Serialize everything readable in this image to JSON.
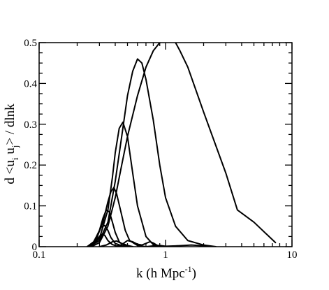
{
  "chart_data": {
    "type": "line",
    "title": "",
    "xlabel": "k (h Mpc",
    "xlabel_sup": "-1",
    "xlabel_close": ")",
    "ylabel": "d <u",
    "ylabel_sub_i": "i",
    "ylabel_mid": " u",
    "ylabel_sub_j": "j",
    "ylabel_end": "> / dlnk",
    "xscale": "log",
    "xlim": [
      0.1,
      10
    ],
    "ylim": [
      0,
      0.5
    ],
    "xticks": [
      {
        "value": 0.1,
        "label": "0.1"
      },
      {
        "value": 1,
        "label": "1"
      },
      {
        "value": 10,
        "label": "10"
      }
    ],
    "yticks": [
      {
        "value": 0,
        "label": "0"
      },
      {
        "value": 0.1,
        "label": "0.1"
      },
      {
        "value": 0.2,
        "label": "0.2"
      },
      {
        "value": 0.3,
        "label": "0.3"
      },
      {
        "value": 0.4,
        "label": "0.4"
      },
      {
        "value": 0.5,
        "label": "0.5"
      }
    ],
    "grid": false,
    "line_color": "#000000",
    "series": [
      {
        "x": [
          0.26,
          0.3,
          0.35,
          0.4,
          0.45,
          0.5,
          0.6,
          0.7,
          0.8,
          0.9,
          1.0,
          1.1,
          1.2,
          1.3,
          1.5,
          2.0,
          3.0,
          3.7,
          5.0,
          7.4
        ],
        "y": [
          0,
          0.01,
          0.05,
          0.12,
          0.2,
          0.27,
          0.37,
          0.44,
          0.48,
          0.5,
          0.505,
          0.505,
          0.5,
          0.48,
          0.44,
          0.33,
          0.18,
          0.09,
          0.06,
          0.01
        ]
      },
      {
        "x": [
          0.25,
          0.3,
          0.35,
          0.4,
          0.45,
          0.5,
          0.55,
          0.6,
          0.65,
          0.7,
          0.8,
          0.9,
          1.0,
          1.2,
          1.5,
          2.0,
          2.5
        ],
        "y": [
          0,
          0.015,
          0.06,
          0.16,
          0.27,
          0.37,
          0.43,
          0.46,
          0.45,
          0.41,
          0.31,
          0.2,
          0.12,
          0.05,
          0.015,
          0.004,
          0
        ]
      },
      {
        "x": [
          0.25,
          0.3,
          0.35,
          0.38,
          0.4,
          0.43,
          0.46,
          0.5,
          0.55,
          0.6,
          0.7,
          0.8,
          0.9
        ],
        "y": [
          0,
          0.02,
          0.09,
          0.17,
          0.23,
          0.29,
          0.305,
          0.27,
          0.18,
          0.1,
          0.025,
          0.005,
          0
        ]
      },
      {
        "x": [
          0.24,
          0.28,
          0.32,
          0.35,
          0.37,
          0.39,
          0.41,
          0.44,
          0.48,
          0.52,
          0.6,
          0.7
        ],
        "y": [
          0,
          0.015,
          0.06,
          0.11,
          0.135,
          0.145,
          0.13,
          0.09,
          0.04,
          0.015,
          0.003,
          0
        ]
      },
      {
        "x": [
          0.24,
          0.27,
          0.3,
          0.32,
          0.34,
          0.36,
          0.38,
          0.4,
          0.43,
          0.47,
          0.55
        ],
        "y": [
          0,
          0.01,
          0.04,
          0.07,
          0.09,
          0.085,
          0.06,
          0.035,
          0.012,
          0.003,
          0
        ]
      },
      {
        "x": [
          0.24,
          0.27,
          0.29,
          0.31,
          0.33,
          0.35,
          0.37,
          0.4,
          0.45,
          0.5
        ],
        "y": [
          0,
          0.012,
          0.03,
          0.048,
          0.052,
          0.04,
          0.022,
          0.008,
          0.002,
          0
        ]
      },
      {
        "x": [
          0.24,
          0.27,
          0.29,
          0.31,
          0.33,
          0.35,
          0.38,
          0.42,
          0.48
        ],
        "y": [
          0,
          0.008,
          0.02,
          0.03,
          0.028,
          0.015,
          0.005,
          0.001,
          0
        ]
      },
      {
        "x": [
          0.3,
          0.34,
          0.38,
          0.41,
          0.44,
          0.47,
          0.5,
          0.55
        ],
        "y": [
          0,
          0.004,
          0.012,
          0.014,
          0.009,
          0.006,
          0.003,
          0
        ]
      },
      {
        "x": [
          0.4,
          0.45,
          0.5,
          0.55,
          0.6,
          0.65,
          0.7,
          0.75,
          0.8,
          0.85,
          0.95
        ],
        "y": [
          0,
          0.005,
          0.015,
          0.012,
          0.006,
          0.004,
          0.008,
          0.012,
          0.009,
          0.004,
          0
        ]
      },
      {
        "x": [
          0.7,
          0.8,
          0.9,
          1.0,
          1.2,
          1.4,
          1.6,
          1.8,
          2.0,
          2.3
        ],
        "y": [
          0,
          0.002,
          0.003,
          0.001,
          0.002,
          0.003,
          0.004,
          0.003,
          0.002,
          0
        ]
      }
    ]
  }
}
